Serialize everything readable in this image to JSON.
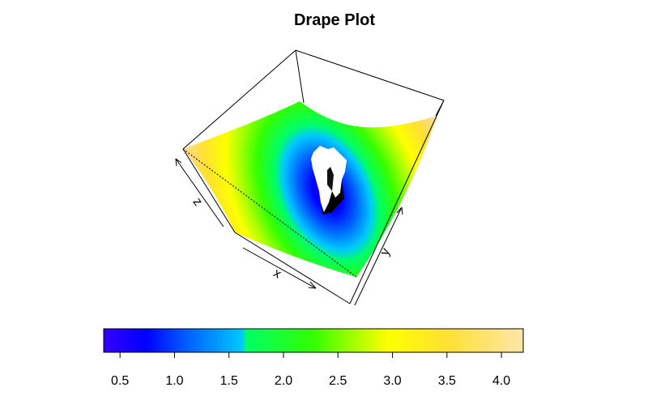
{
  "chart_data": {
    "type": "surface",
    "title": "Drape Plot",
    "xlabel": "x",
    "ylabel": "y",
    "zlabel": "z",
    "colorbar": {
      "range": [
        0.35,
        4.2
      ],
      "ticks": [
        "0.5",
        "1.0",
        "1.5",
        "2.0",
        "2.5",
        "3.0",
        "3.5",
        "4.0"
      ],
      "tick_values": [
        0.5,
        1.0,
        1.5,
        2.0,
        2.5,
        3.0,
        3.5,
        4.0
      ],
      "colors": [
        "#3300ff",
        "#0000ff",
        "#0060ff",
        "#00c8ff",
        "#00ff66",
        "#33ff00",
        "#aaff00",
        "#ffff00",
        "#ffe033",
        "#ffe6aa"
      ],
      "stops": [
        0.0,
        0.1,
        0.2,
        0.33,
        0.34,
        0.5,
        0.6,
        0.68,
        0.82,
        1.0
      ]
    },
    "surface": {
      "description_levels": [
        0.35,
        4.2
      ],
      "minimum_value": 0.35
    }
  }
}
